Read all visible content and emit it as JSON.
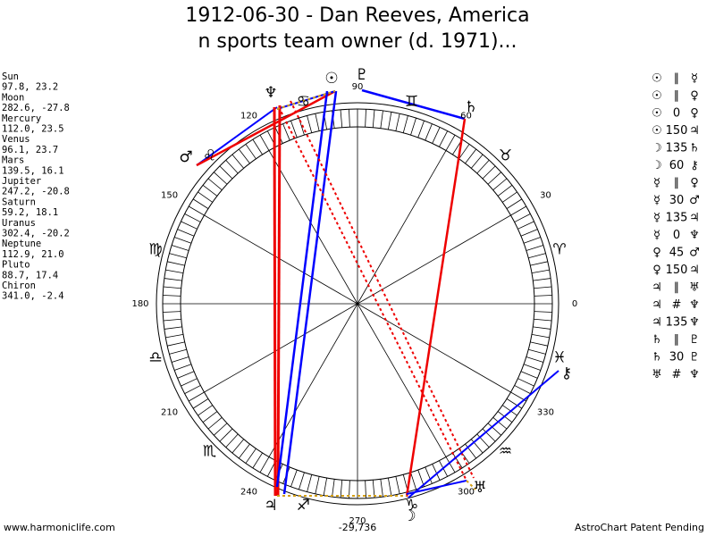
{
  "header": {
    "title_line1": "1912-06-30 - Dan Reeves, America",
    "title_line2": "n sports team owner (d. 1971)..."
  },
  "positions": [
    {
      "name": "Sun",
      "coords": "97.8, 23.2"
    },
    {
      "name": "Moon",
      "coords": "282.6, -27.8"
    },
    {
      "name": "Mercury",
      "coords": "112.0, 23.5"
    },
    {
      "name": "Venus",
      "coords": "96.1, 23.7"
    },
    {
      "name": "Mars",
      "coords": "139.5, 16.1"
    },
    {
      "name": "Jupiter",
      "coords": "247.2, -20.8"
    },
    {
      "name": "Saturn",
      "coords": "59.2, 18.1"
    },
    {
      "name": "Uranus",
      "coords": "302.4, -20.2"
    },
    {
      "name": "Neptune",
      "coords": "112.9, 21.0"
    },
    {
      "name": "Pluto",
      "coords": "88.7, 17.4"
    },
    {
      "name": "Chiron",
      "coords": "341.0, -2.4"
    }
  ],
  "aspects": [
    {
      "a": "☉",
      "aspect": "∥",
      "b": "☿"
    },
    {
      "a": "☉",
      "aspect": "∥",
      "b": "♀"
    },
    {
      "a": "☉",
      "aspect": "0",
      "b": "♀"
    },
    {
      "a": "☉",
      "aspect": "150",
      "b": "♃"
    },
    {
      "a": "☽",
      "aspect": "135",
      "b": "♄"
    },
    {
      "a": "☽",
      "aspect": "60",
      "b": "⚷"
    },
    {
      "a": "☿",
      "aspect": "∥",
      "b": "♀"
    },
    {
      "a": "☿",
      "aspect": "30",
      "b": "♂"
    },
    {
      "a": "☿",
      "aspect": "135",
      "b": "♃"
    },
    {
      "a": "☿",
      "aspect": "0",
      "b": "♆"
    },
    {
      "a": "♀",
      "aspect": "45",
      "b": "♂"
    },
    {
      "a": "♀",
      "aspect": "150",
      "b": "♃"
    },
    {
      "a": "♃",
      "aspect": "∥",
      "b": "♅"
    },
    {
      "a": "♃",
      "aspect": "#",
      "b": "♆"
    },
    {
      "a": "♃",
      "aspect": "135",
      "b": "♆"
    },
    {
      "a": "♄",
      "aspect": "∥",
      "b": "♇"
    },
    {
      "a": "♄",
      "aspect": "30",
      "b": "♇"
    },
    {
      "a": "♅",
      "aspect": "#",
      "b": "♆"
    }
  ],
  "wheel": {
    "degree_labels": [
      "0",
      "30",
      "60",
      "90",
      "120",
      "150",
      "180",
      "210",
      "240",
      "270",
      "300",
      "330"
    ],
    "signs": [
      "♈",
      "♉",
      "♊",
      "♋",
      "♌",
      "♍",
      "♎",
      "♏",
      "♐",
      "♑",
      "♒",
      "♓"
    ],
    "planets": [
      "☉",
      "♇",
      "♆",
      "♂",
      "♄",
      "♃",
      "☽",
      "♅",
      "⚷"
    ],
    "center_value": "-29,736"
  },
  "footer": {
    "left": "www.harmoniclife.com",
    "right": "AstroChart Patent Pending"
  }
}
